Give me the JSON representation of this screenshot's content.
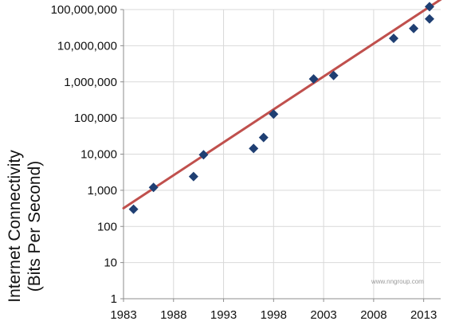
{
  "chart_data": {
    "type": "scatter",
    "title": "",
    "ylabel_lines": [
      "Internet Connectivity",
      "(Bits Per Second)"
    ],
    "xlabel": "",
    "y_scale": "log",
    "ylim": [
      1,
      100000000
    ],
    "xlim": [
      1983,
      2014.7
    ],
    "x_ticks": [
      1983,
      1988,
      1993,
      1998,
      2003,
      2008,
      2013
    ],
    "y_ticks": [
      1,
      10,
      100,
      1000,
      10000,
      100000,
      1000000,
      10000000,
      100000000
    ],
    "y_tick_labels": [
      "1",
      "10",
      "100",
      "1,000",
      "10,000",
      "100,000",
      "1,000,000",
      "10,000,000",
      "100,000,000"
    ],
    "grid": "horizontal and vertical",
    "legend": "none",
    "series": [
      {
        "marker": "diamond",
        "color": "#1f3f73",
        "points": [
          {
            "x": 1984,
            "y": 300
          },
          {
            "x": 1986,
            "y": 1200
          },
          {
            "x": 1990,
            "y": 2400
          },
          {
            "x": 1991,
            "y": 9600
          },
          {
            "x": 1996,
            "y": 14400
          },
          {
            "x": 1997,
            "y": 28800
          },
          {
            "x": 1998,
            "y": 128000
          },
          {
            "x": 2002,
            "y": 1200000
          },
          {
            "x": 2004,
            "y": 1500000
          },
          {
            "x": 2010,
            "y": 16000000
          },
          {
            "x": 2012,
            "y": 30000000
          },
          {
            "x": 2015,
            "y": 55000000
          },
          {
            "x": 2016,
            "y": 120000000
          }
        ]
      }
    ],
    "trendline": {
      "color": "#c0504d",
      "from": {
        "x": 1983,
        "y": 320
      },
      "to": {
        "x": 2014.7,
        "y": 190000000
      }
    },
    "watermark": "www.nngroup.com"
  }
}
